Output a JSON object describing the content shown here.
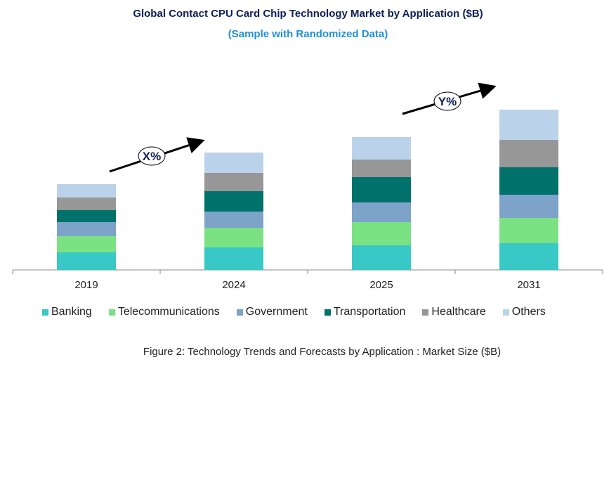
{
  "title": "Global Contact CPU Card Chip Technology Market by Application ($B)",
  "subtitle": "(Sample with Randomized Data)",
  "caption": "Figure 2: Technology  Trends  and Forecasts by Application : Market Size ($B)",
  "chart_data": {
    "type": "bar",
    "stacked": true,
    "categories": [
      "2019",
      "2024",
      "2025",
      "2031"
    ],
    "series": [
      {
        "name": "Banking",
        "color": "#38c8c6",
        "values": [
          2.5,
          3.2,
          3.5,
          3.8
        ]
      },
      {
        "name": "Telecommunications",
        "color": "#7ae282",
        "values": [
          2.3,
          2.8,
          3.3,
          3.6
        ]
      },
      {
        "name": "Government",
        "color": "#7da3c8",
        "values": [
          2.0,
          2.3,
          2.8,
          3.3
        ]
      },
      {
        "name": "Transportation",
        "color": "#00716b",
        "values": [
          1.7,
          2.9,
          3.6,
          3.9
        ]
      },
      {
        "name": "Healthcare",
        "color": "#979797",
        "values": [
          1.8,
          2.6,
          2.5,
          3.9
        ]
      },
      {
        "name": "Others",
        "color": "#bad3eb",
        "values": [
          1.9,
          2.9,
          3.2,
          4.3
        ]
      }
    ],
    "annotations": [
      {
        "label": "X%",
        "from": "2019",
        "to": "2024"
      },
      {
        "label": "Y%",
        "from": "2025",
        "to": "2031"
      }
    ],
    "xlabel": "",
    "ylabel": "",
    "grid": false,
    "y_axis_shown": false,
    "legend": "bottom"
  }
}
